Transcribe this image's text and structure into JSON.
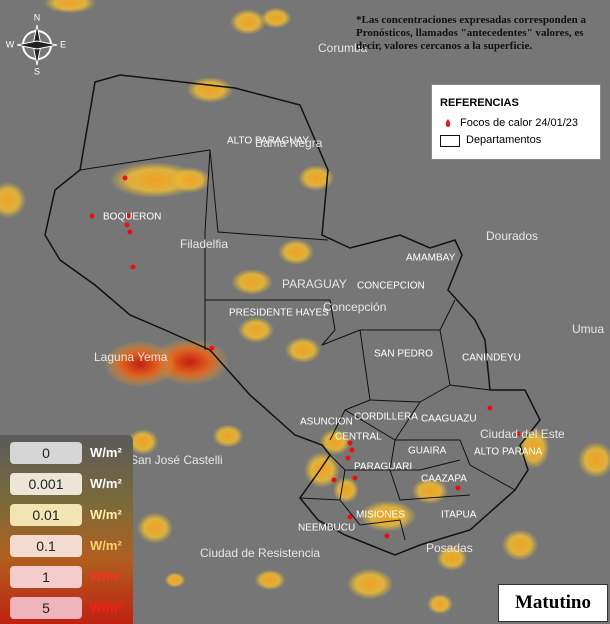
{
  "note": "*Las concentraciones expresadas corresponden a Pronósticos, llamados \"antecedentes\" valores, es decir, valores cercanos a la superficie.",
  "compass": {
    "n": "N",
    "s": "S",
    "e": "E",
    "w": "W"
  },
  "legend": {
    "title": "REFERENCIAS",
    "items": [
      "Focos de calor 24/01/23",
      "Departamentos"
    ]
  },
  "departments": [
    "ALTO PARAGUAY",
    "BOQUERON",
    "PRESIDENTE HAYES",
    "AMAMBAY",
    "CONCEPCION",
    "SAN PEDRO",
    "CANINDEYU",
    "CORDILLERA",
    "CAAGUAZU",
    "ASUNCION",
    "CENTRAL",
    "GUAIRA",
    "ALTO PARANA",
    "PARAGUARI",
    "CAAZAPA",
    "ITAPUA",
    "MISIONES",
    "NEEMBUCU"
  ],
  "places": [
    "Bahía Negra",
    "Filadelfia",
    "Laguna Yema",
    "PARAGUAY",
    "Concepción",
    "Dourados",
    "Corumbá",
    "Ciudad del Este",
    "San José Castelli",
    "Ciudad de Resistencia",
    "Posadas",
    "Umua"
  ],
  "scale": {
    "unit": "W/m²",
    "levels": [
      "0",
      "0.001",
      "0.01",
      "0.1",
      "1",
      "5"
    ]
  },
  "period": "Matutino"
}
